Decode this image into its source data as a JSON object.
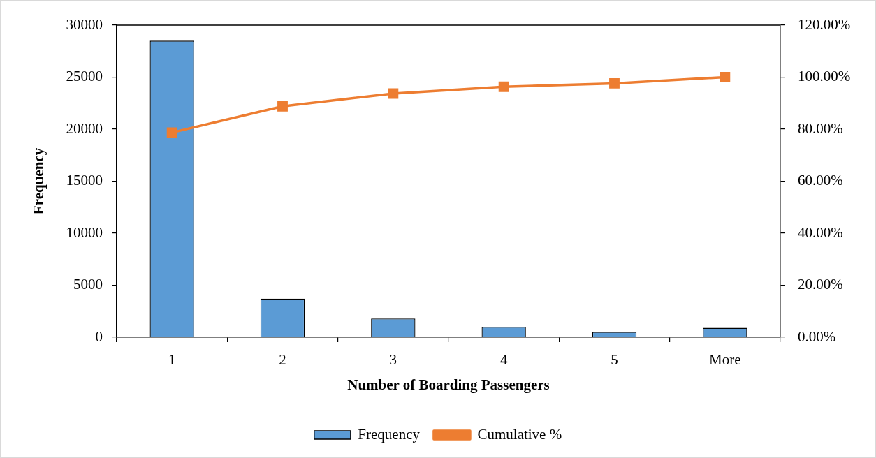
{
  "chart_data": {
    "type": "bar",
    "xlabel": "Number of Boarding Passengers",
    "ylabel": "Frequency",
    "categories": [
      "1",
      "2",
      "3",
      "4",
      "5",
      "More"
    ],
    "series": [
      {
        "name": "Frequency",
        "color": "#5b9bd5",
        "values": [
          28500,
          3700,
          1800,
          1000,
          500,
          900
        ]
      },
      {
        "name": "Cumulative %",
        "type": "line",
        "axis": "y2",
        "color": "#ed7d31",
        "values": [
          78.7,
          88.8,
          93.7,
          96.3,
          97.6,
          100
        ]
      }
    ],
    "ylim": [
      0,
      30000
    ],
    "yticks": [
      0,
      5000,
      10000,
      15000,
      20000,
      25000,
      30000
    ],
    "y2lim": [
      0,
      120
    ],
    "y2ticks": [
      {
        "value": 0,
        "label": "0.00%"
      },
      {
        "value": 20,
        "label": "20.00%"
      },
      {
        "value": 40,
        "label": "40.00%"
      },
      {
        "value": 60,
        "label": "60.00%"
      },
      {
        "value": 80,
        "label": "80.00%"
      },
      {
        "value": 100,
        "label": "100.00%"
      },
      {
        "value": 120,
        "label": "120.00%"
      }
    ],
    "legend": "bottom",
    "marker": "square"
  }
}
